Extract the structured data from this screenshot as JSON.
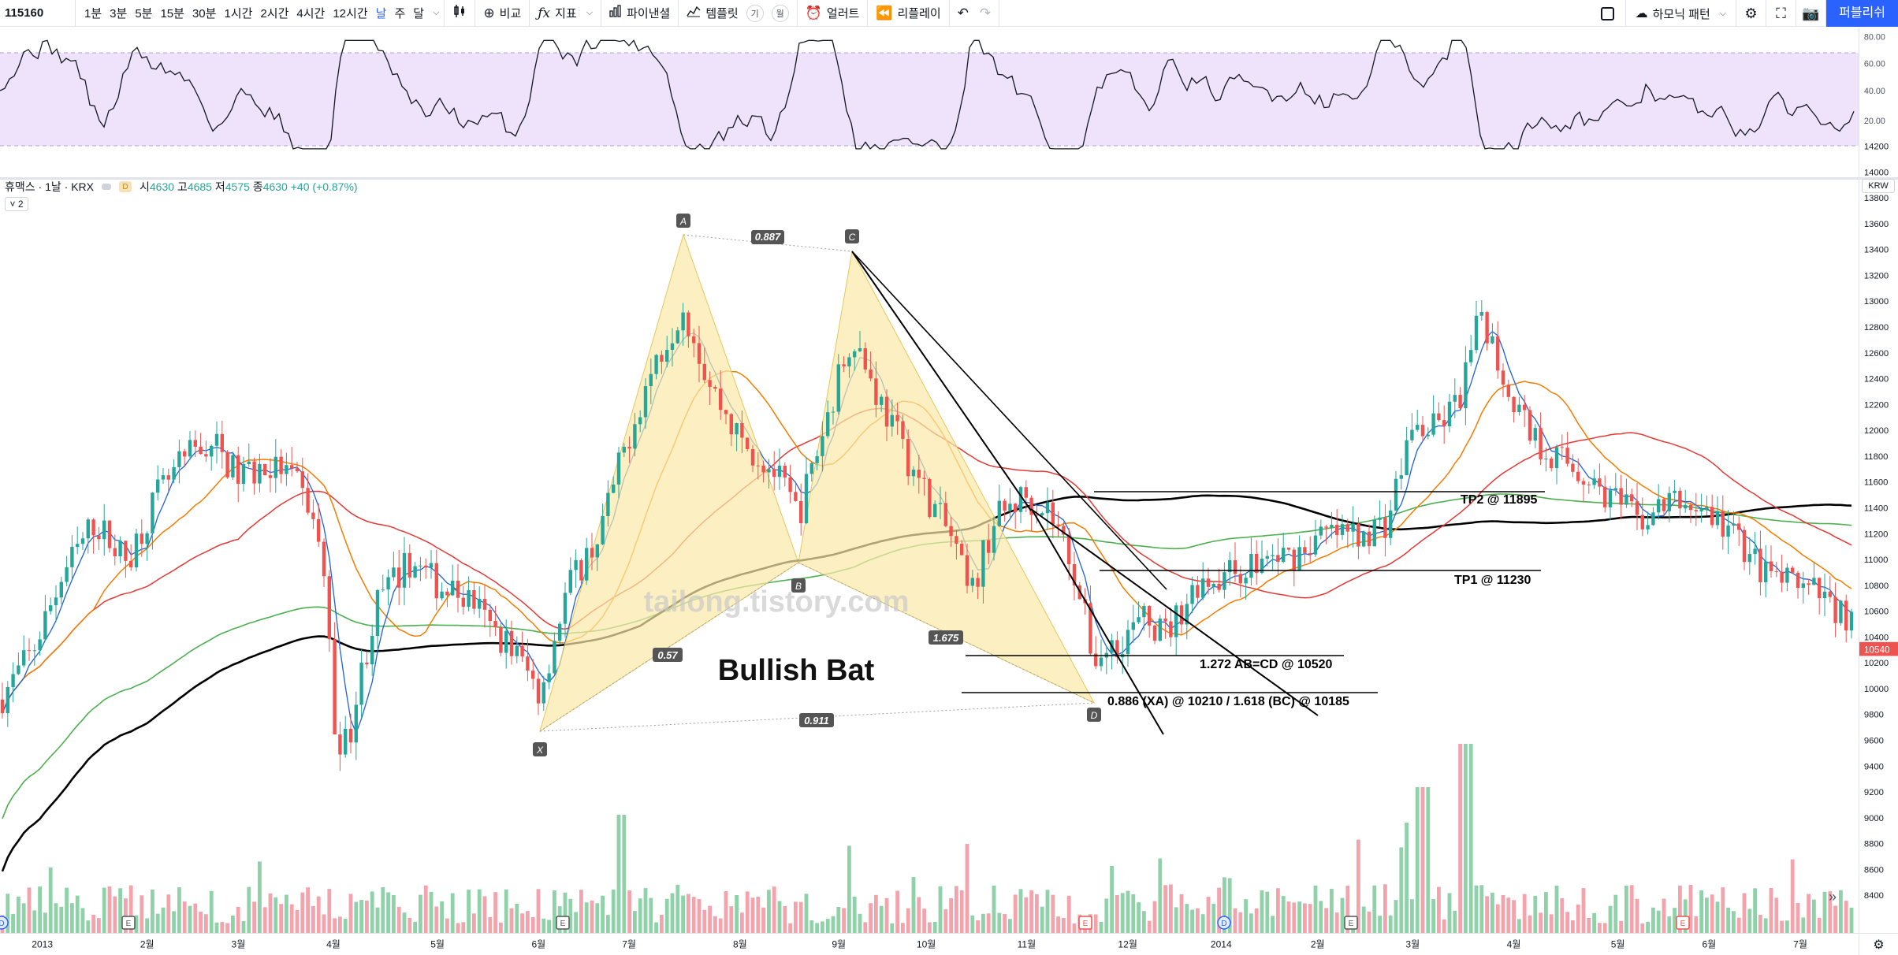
{
  "toolbar": {
    "symbol": "115160",
    "intervals": [
      "1분",
      "3분",
      "5분",
      "15분",
      "30분",
      "1시간",
      "2시간",
      "4시간",
      "12시간",
      "날",
      "주",
      "달"
    ],
    "active_interval": "날",
    "compare_label": "비교",
    "indicators_label": "지표",
    "fibonacci_label": "파이낸셜",
    "templates_label": "템플릿",
    "template_mini_1": "기",
    "template_mini_2": "월",
    "alert_label": "얼러트",
    "replay_label": "리플레이",
    "harmonic_label": "하모닉 패턴",
    "publish_label": "퍼블리쉬"
  },
  "legend": {
    "title": "휴맥스 · 1날 · KRX",
    "d_badge": "D",
    "open_label": "시",
    "open": "4630",
    "high_label": "고",
    "high": "4685",
    "low_label": "저",
    "low": "4575",
    "close_label": "종",
    "close": "4630",
    "change": "+40 (+0.87%)",
    "collapse": "˅ 2"
  },
  "currency": "KRW",
  "last_price_badge": "10540",
  "watermark": "tailong.tistory.com",
  "pattern_title": "Bullish Bat",
  "rsi_axis": [
    "80.00",
    "60.00",
    "40.00",
    "20.00"
  ],
  "price_axis": [
    "14200",
    "14000",
    "13800",
    "13600",
    "13400",
    "13200",
    "13000",
    "12800",
    "12600",
    "12400",
    "12200",
    "12000",
    "11800",
    "11600",
    "11400",
    "11200",
    "11000",
    "10800",
    "10600",
    "10400",
    "10200",
    "10000",
    "9800",
    "9600",
    "9400",
    "9200",
    "9000",
    "8800",
    "8600",
    "8400"
  ],
  "time_axis": [
    "2013",
    "2월",
    "3월",
    "4월",
    "5월",
    "6월",
    "7월",
    "8월",
    "9월",
    "10월",
    "11월",
    "12월",
    "2014",
    "2월",
    "3월",
    "4월",
    "5월",
    "6월",
    "7월"
  ],
  "pattern_points": [
    "X",
    "A",
    "B",
    "C",
    "D"
  ],
  "ratios": {
    "xa_xd": "0.911",
    "xb": "0.57",
    "ac": "0.887",
    "bd": "1.675"
  },
  "annotations": {
    "tp2": "TP2 @ 11895",
    "tp1": "TP1 @ 11230",
    "abcd": "1.272 AB=CD @ 10520",
    "d_level": "0.886 (XA) @ 10210 / 1.618 (BC) @ 10185"
  },
  "colors": {
    "up": "#26a69a",
    "down": "#ef5350",
    "vol_up": "#8fd1a8",
    "vol_down": "#f2a3ab",
    "rsi_band": "#efe2fb",
    "pattern_fill": "#fbeaa8",
    "accent": "#2962ff",
    "ma_orange": "#f57c00",
    "ma_red": "#e53935",
    "ma_green": "#4caf50",
    "ma_black": "#000000",
    "ma_blue": "#1e63d6"
  }
}
